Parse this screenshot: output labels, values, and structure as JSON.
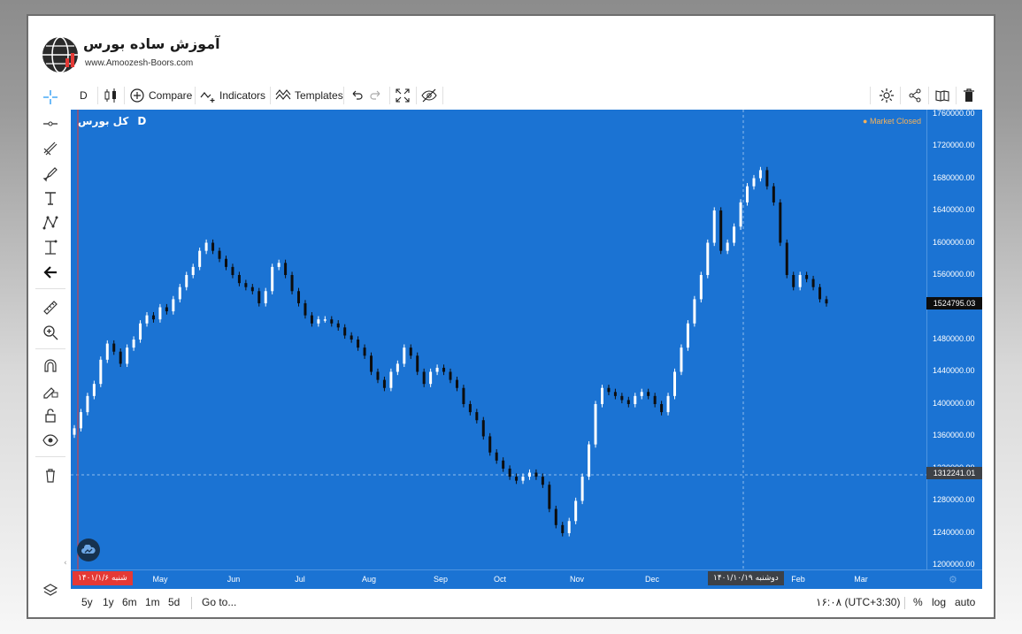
{
  "logo": {
    "title": "آموزش ساده بورس",
    "url": "www.Amoozesh-Boors.com"
  },
  "left_toolbar": {
    "items": [
      "crosshair-icon",
      "horizontal-line-icon",
      "trend-lines-icon",
      "brush-icon",
      "text-icon",
      "pattern-icon",
      "measure-icon",
      "back-arrow-icon",
      "ruler-icon",
      "zoom-in-icon",
      "magnet-icon",
      "lock-drawing-icon",
      "unlock-icon",
      "eye-icon",
      "trash-icon",
      "layers-icon"
    ]
  },
  "top_toolbar": {
    "interval": "D",
    "compare_label": "Compare",
    "indicators_label": "Indicators",
    "templates_label": "Templates"
  },
  "chart": {
    "symbol": "کل بورس",
    "interval": "D",
    "market_status": "● Market Closed",
    "current_price": "1524795.03",
    "crosshair_price": "1312241.01",
    "crosshair_date": "دوشنبه ۱۴۰۱/۱۰/۱۹",
    "start_date": "شنبه ۱۴۰۱/۱/۶",
    "colors": {
      "background": "#1b73d3",
      "up": "#ffffff",
      "down": "#0d0d0d",
      "current_price_bg": "#0d0d0d",
      "crosshair_tag_bg": "#3d4147",
      "start_tag_bg": "#e53935"
    }
  },
  "price_axis": [
    "1760000.00",
    "1720000.00",
    "1680000.00",
    "1640000.00",
    "1600000.00",
    "1560000.00",
    "1480000.00",
    "1440000.00",
    "1400000.00",
    "1360000.00",
    "1320000.00",
    "1280000.00",
    "1240000.00",
    "1200000.00"
  ],
  "time_axis": [
    "May",
    "Jun",
    "Jul",
    "Aug",
    "Sep",
    "Oct",
    "Nov",
    "Dec",
    "Feb",
    "Mar"
  ],
  "bottom_bar": {
    "ranges": [
      "5y",
      "1y",
      "6m",
      "1m",
      "5d"
    ],
    "goto": "Go to...",
    "clock": "۱۶:۰۸ (UTC+3:30)",
    "percent": "%",
    "log": "log",
    "auto": "auto"
  },
  "chart_data": {
    "type": "candlestick",
    "title": "کل بورس",
    "interval": "D",
    "y_unit": "index points",
    "ylim": [
      1190000,
      1765000
    ],
    "x_ticks": [
      "May",
      "Jun",
      "Jul",
      "Aug",
      "Sep",
      "Oct",
      "Nov",
      "Dec",
      "Feb",
      "Mar"
    ],
    "close_series": [
      1370000,
      1390000,
      1410000,
      1425000,
      1455000,
      1475000,
      1465000,
      1450000,
      1470000,
      1480000,
      1500000,
      1510000,
      1505000,
      1520000,
      1515000,
      1530000,
      1545000,
      1560000,
      1570000,
      1590000,
      1600000,
      1590000,
      1580000,
      1570000,
      1560000,
      1550000,
      1545000,
      1540000,
      1525000,
      1540000,
      1570000,
      1575000,
      1560000,
      1540000,
      1525000,
      1510000,
      1500000,
      1505000,
      1505000,
      1500000,
      1495000,
      1485000,
      1480000,
      1470000,
      1460000,
      1440000,
      1430000,
      1420000,
      1440000,
      1450000,
      1470000,
      1460000,
      1440000,
      1425000,
      1440000,
      1445000,
      1440000,
      1430000,
      1420000,
      1400000,
      1390000,
      1380000,
      1360000,
      1340000,
      1330000,
      1320000,
      1310000,
      1305000,
      1310000,
      1315000,
      1310000,
      1300000,
      1270000,
      1250000,
      1240000,
      1255000,
      1280000,
      1310000,
      1350000,
      1400000,
      1420000,
      1415000,
      1410000,
      1405000,
      1400000,
      1410000,
      1415000,
      1410000,
      1400000,
      1390000,
      1410000,
      1440000,
      1470000,
      1500000,
      1530000,
      1560000,
      1600000,
      1640000,
      1590000,
      1600000,
      1620000,
      1650000,
      1670000,
      1680000,
      1690000,
      1670000,
      1650000,
      1600000,
      1560000,
      1545000,
      1560000,
      1555000,
      1545000,
      1530000,
      1524795.03
    ],
    "last_price": 1524795.03,
    "crosshair_price": 1312241.01
  }
}
